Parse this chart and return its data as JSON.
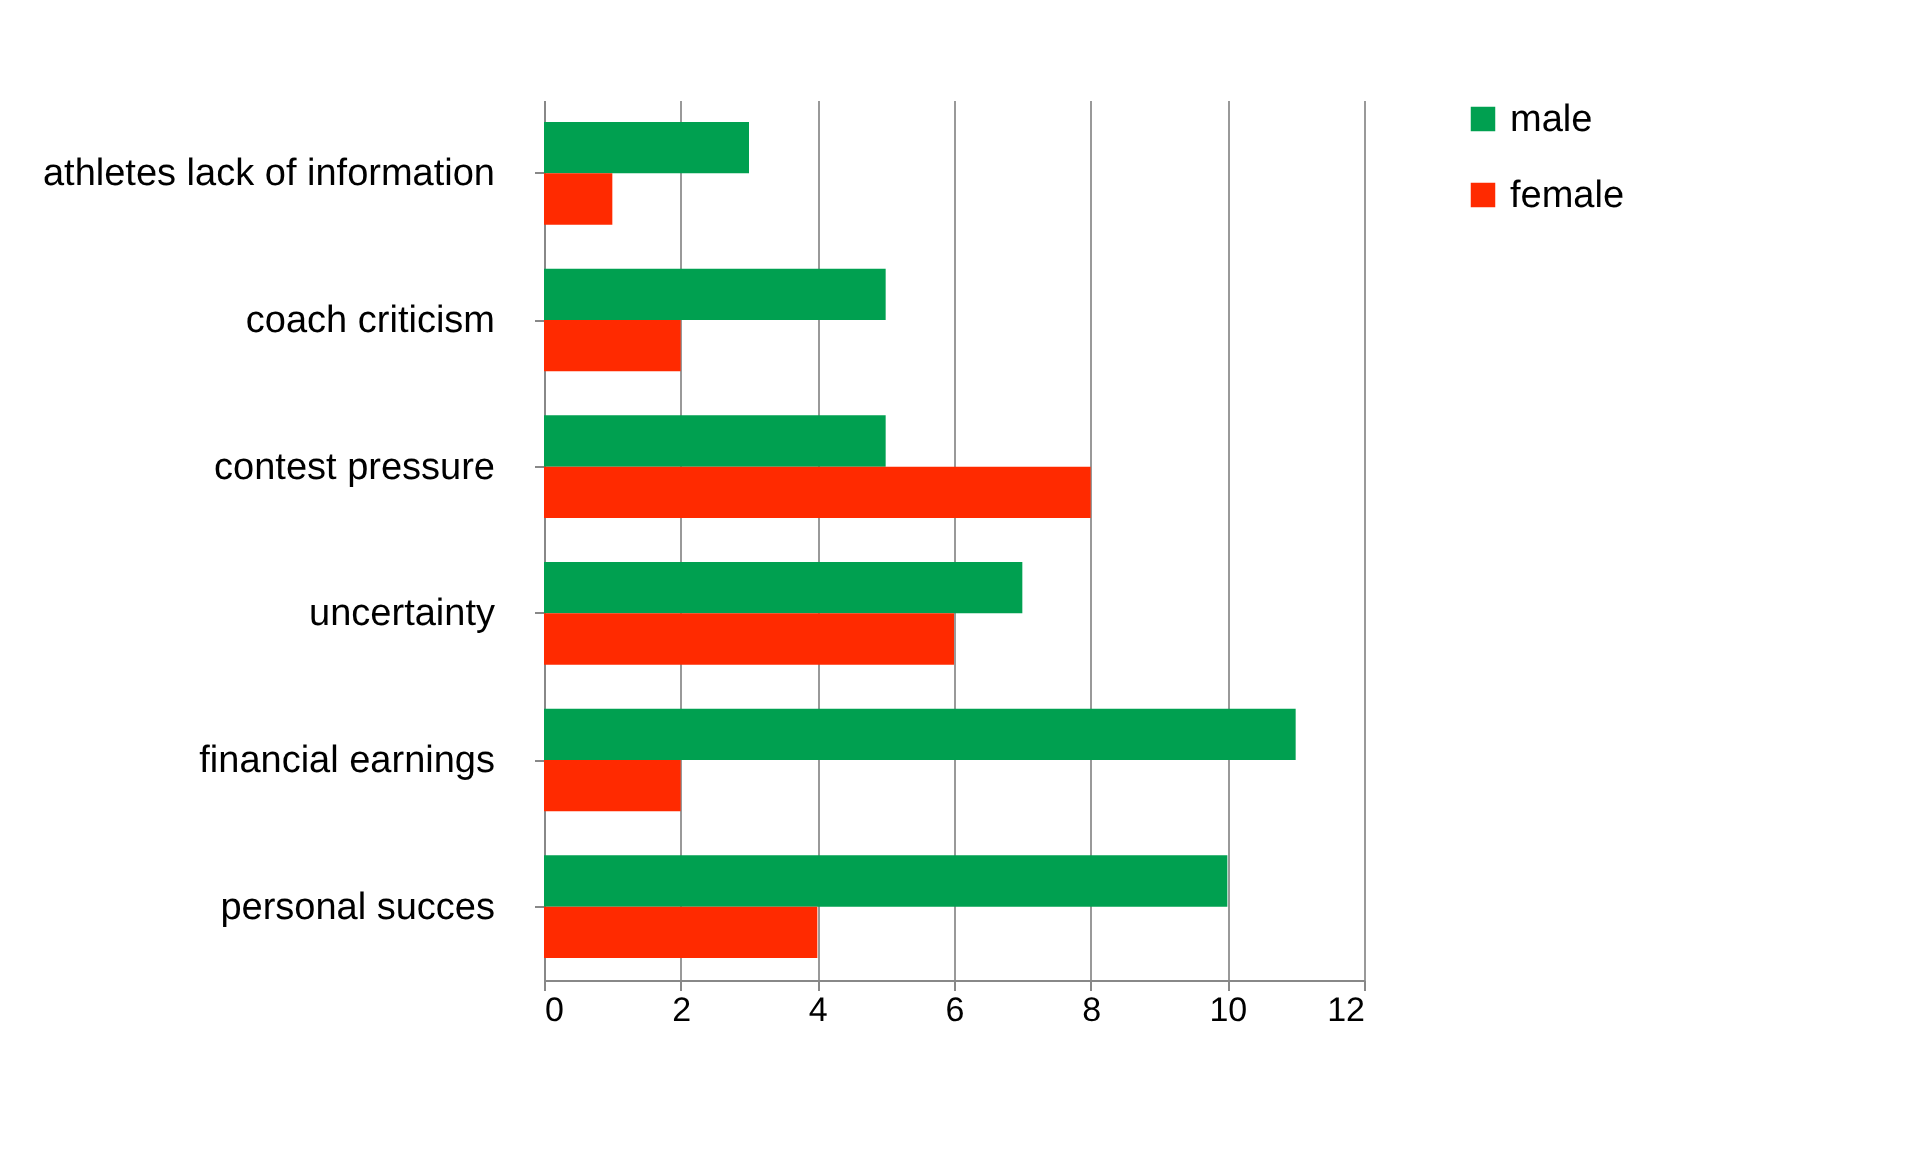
{
  "chart_data": {
    "type": "bar",
    "orientation": "horizontal",
    "categories": [
      "athletes lack of information",
      "coach criticism",
      "contest pressure",
      "uncertainty",
      "financial earnings",
      "personal succes"
    ],
    "series": [
      {
        "name": "male",
        "color": "#00a050",
        "values": [
          3,
          5,
          5,
          7,
          11,
          10
        ]
      },
      {
        "name": "female",
        "color": "#ff2a00",
        "values": [
          1,
          2,
          8,
          6,
          2,
          4
        ]
      }
    ],
    "xlim": [
      0,
      12
    ],
    "xticks": [
      0,
      2,
      4,
      6,
      8,
      10,
      12
    ],
    "grid": "x",
    "legend": "right"
  }
}
